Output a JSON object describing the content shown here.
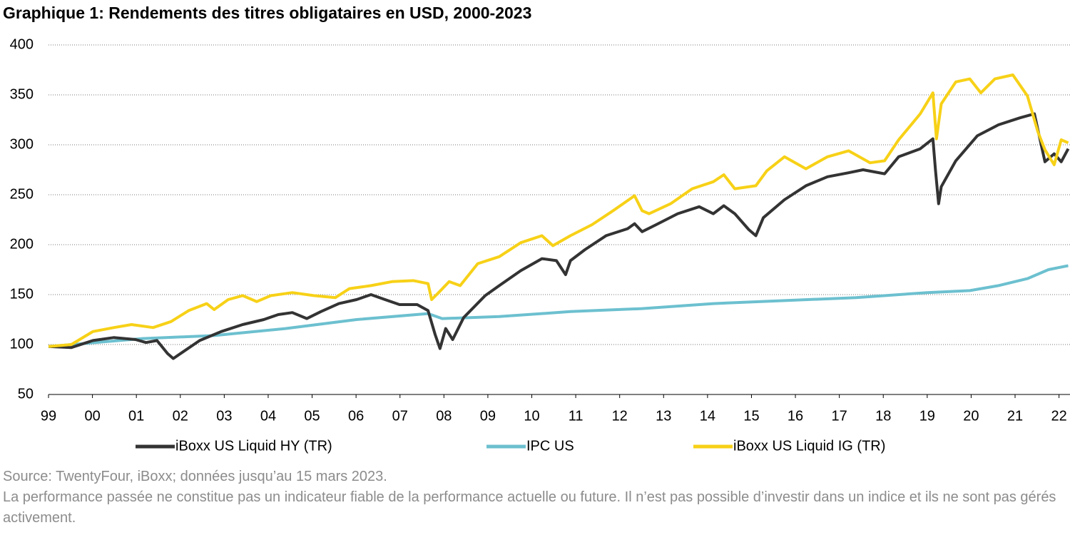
{
  "chart_data": {
    "type": "line",
    "title": "Graphique 1: Rendements des titres obligataires en USD, 2000-2023",
    "xlim": [
      1999,
      2022.25
    ],
    "xticks": [
      {
        "value": 1999,
        "label": "99"
      },
      {
        "value": 2000,
        "label": "00"
      },
      {
        "value": 2001,
        "label": "01"
      },
      {
        "value": 2002,
        "label": "02"
      },
      {
        "value": 2003,
        "label": "03"
      },
      {
        "value": 2004,
        "label": "04"
      },
      {
        "value": 2005,
        "label": "05"
      },
      {
        "value": 2006,
        "label": "06"
      },
      {
        "value": 2007,
        "label": "07"
      },
      {
        "value": 2008,
        "label": "08"
      },
      {
        "value": 2009,
        "label": "09"
      },
      {
        "value": 2010,
        "label": "10"
      },
      {
        "value": 2011,
        "label": "11"
      },
      {
        "value": 2012,
        "label": "12"
      },
      {
        "value": 2013,
        "label": "13"
      },
      {
        "value": 2014,
        "label": "14"
      },
      {
        "value": 2015,
        "label": "15"
      },
      {
        "value": 2016,
        "label": "16"
      },
      {
        "value": 2017,
        "label": "17"
      },
      {
        "value": 2018,
        "label": "18"
      },
      {
        "value": 2019,
        "label": "19"
      },
      {
        "value": 2020,
        "label": "20"
      },
      {
        "value": 2021,
        "label": "21"
      },
      {
        "value": 2022,
        "label": "22"
      }
    ],
    "ylim": [
      50,
      400
    ],
    "yticks": [
      50,
      100,
      150,
      200,
      250,
      300,
      350,
      400
    ],
    "grid": true,
    "legend": "bottom",
    "series": [
      {
        "name": "iBoxx US Liquid HY (TR)",
        "color": "#333333",
        "x": [
          1999.0,
          1999.52,
          2000.01,
          2000.49,
          2000.98,
          2001.22,
          2001.47,
          2001.71,
          2001.84,
          2002.04,
          2002.44,
          2002.93,
          2003.42,
          2003.9,
          2004.23,
          2004.55,
          2004.88,
          2005.2,
          2005.61,
          2006.01,
          2006.34,
          2006.66,
          2006.99,
          2007.39,
          2007.64,
          2007.8,
          2007.91,
          2008.04,
          2008.2,
          2008.45,
          2008.94,
          2009.26,
          2009.75,
          2010.23,
          2010.56,
          2010.77,
          2010.88,
          2011.21,
          2011.69,
          2012.18,
          2012.34,
          2012.51,
          2012.83,
          2013.32,
          2013.81,
          2014.13,
          2014.37,
          2014.62,
          2014.94,
          2015.1,
          2015.27,
          2015.75,
          2016.24,
          2016.73,
          2017.21,
          2017.54,
          2018.03,
          2018.35,
          2018.84,
          2019.13,
          2019.19,
          2019.26,
          2019.32,
          2019.65,
          2020.14,
          2020.62,
          2021.11,
          2021.44,
          2021.52,
          2021.68,
          2021.89,
          2022.05,
          2022.21
        ],
        "values": [
          98,
          97,
          104,
          107,
          105,
          102,
          104,
          91,
          86,
          92,
          104,
          113,
          120,
          125,
          130,
          132,
          126,
          133,
          141,
          145,
          150,
          145,
          140,
          140,
          134,
          110,
          96,
          116,
          105,
          127,
          149,
          159,
          174,
          186,
          184,
          170,
          184,
          195,
          209,
          216,
          221,
          213,
          220,
          231,
          238,
          231,
          239,
          231,
          215,
          209,
          227,
          245,
          259,
          268,
          272,
          275,
          271,
          288,
          296,
          306,
          274,
          241,
          258,
          284,
          309,
          320,
          327,
          331,
          315,
          283,
          291,
          283,
          296
        ]
      },
      {
        "name": "IPC US",
        "color": "#6cc0cf",
        "x": [
          1999.0,
          2001.14,
          2002.77,
          2004.39,
          2006.01,
          2007.64,
          2007.96,
          2009.26,
          2010.88,
          2012.51,
          2014.13,
          2015.75,
          2017.38,
          2019.0,
          2019.97,
          2020.62,
          2021.28,
          2021.76,
          2022.21
        ],
        "values": [
          98,
          106,
          109,
          116,
          125,
          131,
          126,
          128,
          133,
          136,
          141,
          144,
          147,
          152,
          154,
          159,
          166,
          175,
          179
        ]
      },
      {
        "name": "iBoxx US Liquid IG (TR)",
        "color": "#f7d117",
        "x": [
          1999.0,
          1999.52,
          2000.01,
          2000.49,
          2000.89,
          2001.38,
          2001.79,
          2002.19,
          2002.6,
          2002.77,
          2003.09,
          2003.42,
          2003.74,
          2004.06,
          2004.55,
          2005.04,
          2005.53,
          2005.85,
          2006.34,
          2006.82,
          2007.31,
          2007.64,
          2007.72,
          2007.88,
          2008.12,
          2008.37,
          2008.77,
          2009.26,
          2009.75,
          2010.23,
          2010.48,
          2010.88,
          2011.37,
          2011.85,
          2012.34,
          2012.51,
          2012.67,
          2013.16,
          2013.65,
          2014.13,
          2014.37,
          2014.62,
          2015.1,
          2015.35,
          2015.75,
          2016.24,
          2016.73,
          2017.21,
          2017.7,
          2018.03,
          2018.35,
          2018.84,
          2019.13,
          2019.21,
          2019.32,
          2019.65,
          2019.97,
          2020.22,
          2020.54,
          2020.95,
          2021.28,
          2021.52,
          2021.68,
          2021.89,
          2022.05,
          2022.21
        ],
        "values": [
          98,
          100,
          113,
          117,
          120,
          117,
          123,
          134,
          141,
          135,
          145,
          149,
          143,
          149,
          152,
          149,
          147,
          156,
          159,
          163,
          164,
          161,
          145,
          152,
          163,
          159,
          181,
          188,
          202,
          209,
          199,
          209,
          220,
          234,
          249,
          234,
          231,
          241,
          256,
          263,
          270,
          256,
          259,
          274,
          288,
          276,
          288,
          294,
          282,
          284,
          305,
          331,
          352,
          306,
          341,
          363,
          366,
          352,
          366,
          370,
          349,
          313,
          295,
          280,
          305,
          302
        ]
      }
    ],
    "source": "Source: TwentyFour, iBoxx; données jusqu’au 15 mars 2023.",
    "note": "La performance passée ne constitue pas un indicateur fiable de la performance actuelle ou future. Il n’est pas possible d’investir dans un indice et ils ne sont pas gérés activement."
  }
}
